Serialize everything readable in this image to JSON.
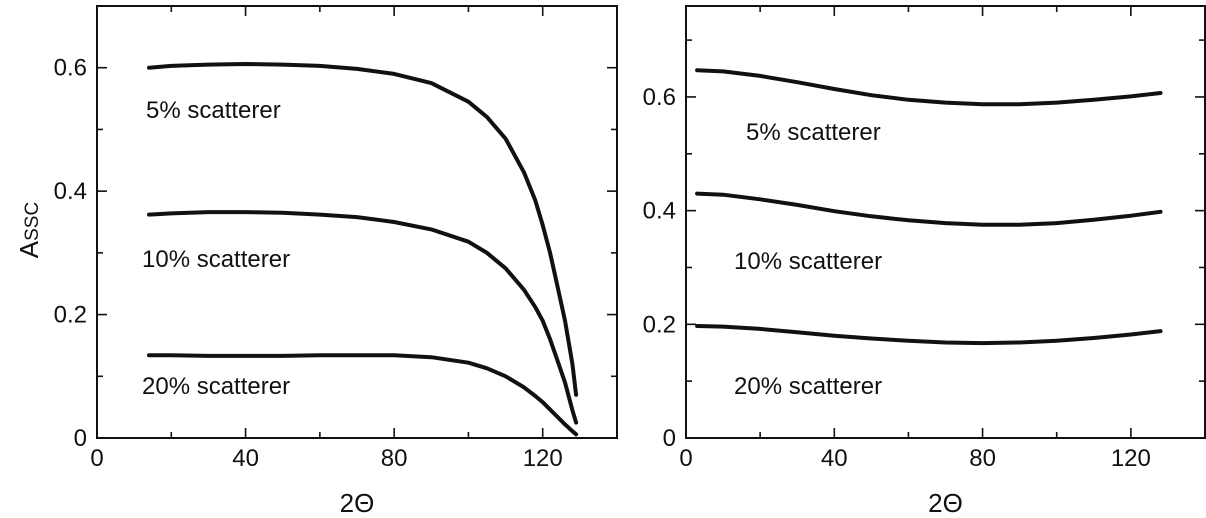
{
  "chart_data": [
    {
      "type": "line",
      "xlabel": "2Θ",
      "ylabel": "A",
      "ylabel_subscript": "SSC",
      "xlim": [
        0,
        140
      ],
      "ylim": [
        0,
        0.7
      ],
      "xticks": [
        "0",
        "40",
        "80",
        "120"
      ],
      "yticks": [
        "0",
        "0.2",
        "0.4",
        "0.6"
      ],
      "grid": false,
      "series": [
        {
          "name": "5% scatterer",
          "x": [
            14,
            20,
            30,
            40,
            50,
            60,
            70,
            80,
            90,
            100,
            105,
            110,
            115,
            118,
            120,
            122,
            124,
            126,
            128,
            129
          ],
          "y": [
            0.6,
            0.603,
            0.605,
            0.606,
            0.605,
            0.603,
            0.598,
            0.59,
            0.575,
            0.545,
            0.52,
            0.485,
            0.43,
            0.385,
            0.345,
            0.3,
            0.245,
            0.19,
            0.12,
            0.07
          ]
        },
        {
          "name": "10% scatterer",
          "x": [
            14,
            20,
            30,
            40,
            50,
            60,
            70,
            80,
            90,
            100,
            105,
            110,
            115,
            118,
            120,
            122,
            124,
            126,
            128,
            129
          ],
          "y": [
            0.362,
            0.364,
            0.366,
            0.366,
            0.365,
            0.362,
            0.358,
            0.35,
            0.338,
            0.318,
            0.3,
            0.275,
            0.24,
            0.212,
            0.19,
            0.16,
            0.125,
            0.09,
            0.045,
            0.025
          ]
        },
        {
          "name": "20% scatterer",
          "x": [
            14,
            20,
            30,
            40,
            50,
            60,
            70,
            80,
            90,
            100,
            105,
            110,
            115,
            118,
            120,
            122,
            124,
            126,
            128,
            129
          ],
          "y": [
            0.134,
            0.134,
            0.133,
            0.133,
            0.133,
            0.134,
            0.134,
            0.134,
            0.131,
            0.122,
            0.113,
            0.1,
            0.082,
            0.068,
            0.058,
            0.046,
            0.034,
            0.022,
            0.011,
            0.006
          ]
        }
      ]
    },
    {
      "type": "line",
      "xlabel": "2Θ",
      "ylabel": "",
      "xlim": [
        0,
        140
      ],
      "ylim": [
        0,
        0.76
      ],
      "xticks": [
        "0",
        "40",
        "80",
        "120"
      ],
      "yticks": [
        "0",
        "0.2",
        "0.4",
        "0.6"
      ],
      "grid": false,
      "series": [
        {
          "name": "5% scatterer",
          "x": [
            3,
            10,
            20,
            30,
            40,
            50,
            60,
            70,
            80,
            90,
            100,
            110,
            120,
            128
          ],
          "y": [
            0.647,
            0.645,
            0.637,
            0.626,
            0.614,
            0.603,
            0.595,
            0.59,
            0.587,
            0.587,
            0.59,
            0.595,
            0.601,
            0.607
          ]
        },
        {
          "name": "10% scatterer",
          "x": [
            3,
            10,
            20,
            30,
            40,
            50,
            60,
            70,
            80,
            90,
            100,
            110,
            120,
            128
          ],
          "y": [
            0.43,
            0.428,
            0.42,
            0.41,
            0.399,
            0.39,
            0.383,
            0.378,
            0.375,
            0.375,
            0.378,
            0.384,
            0.391,
            0.398
          ]
        },
        {
          "name": "20% scatterer",
          "x": [
            3,
            10,
            20,
            30,
            40,
            50,
            60,
            70,
            80,
            90,
            100,
            110,
            120,
            128
          ],
          "y": [
            0.197,
            0.196,
            0.192,
            0.186,
            0.18,
            0.175,
            0.171,
            0.168,
            0.167,
            0.168,
            0.171,
            0.176,
            0.182,
            0.188
          ]
        }
      ]
    }
  ]
}
